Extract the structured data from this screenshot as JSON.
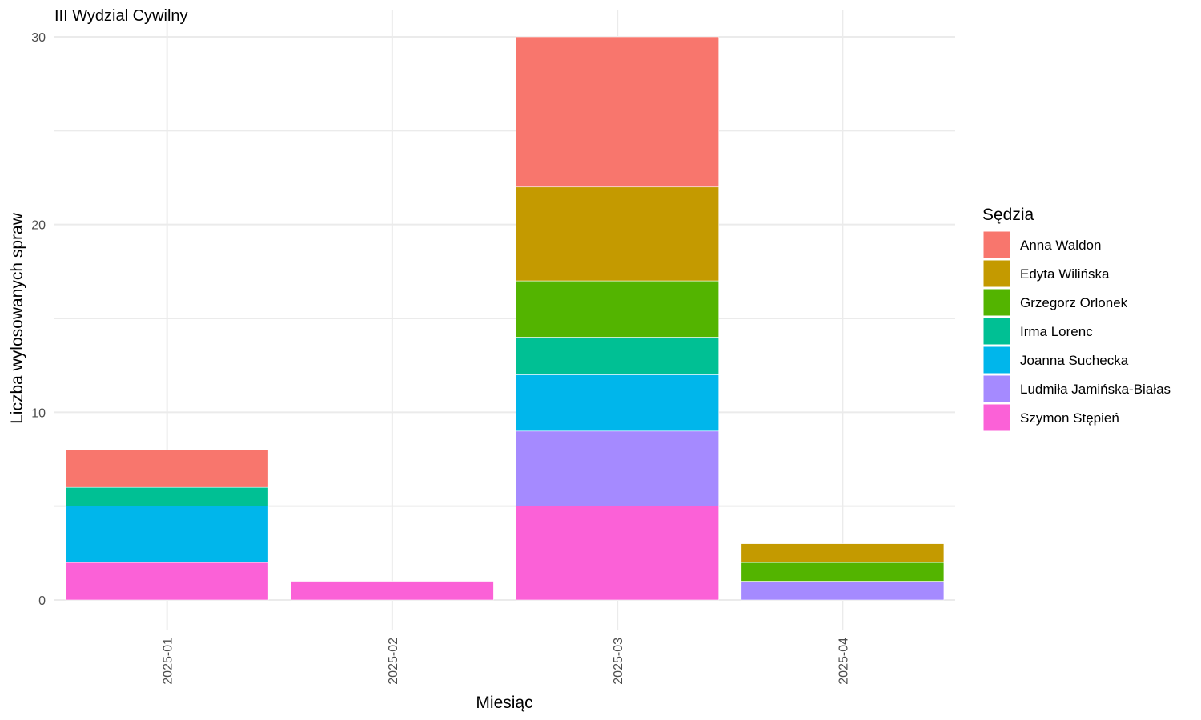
{
  "chart_data": {
    "type": "bar",
    "stacked": true,
    "title": "III Wydzial Cywilny",
    "xlabel": "Miesiąc",
    "ylabel": "Liczba wylosowanych spraw",
    "ylim": [
      0,
      30
    ],
    "y_ticks": [
      0,
      10,
      20,
      30
    ],
    "grid": true,
    "legend_position": "right",
    "categories": [
      "2025-01",
      "2025-02",
      "2025-03",
      "2025-04"
    ],
    "legend_title": "Sędzia",
    "series": [
      {
        "name": "Anna Waldon",
        "color": "#F8766D",
        "values": [
          2,
          0,
          8,
          0
        ]
      },
      {
        "name": "Edyta Wilińska",
        "color": "#C49A00",
        "values": [
          0,
          0,
          5,
          1
        ]
      },
      {
        "name": "Grzegorz Orlonek",
        "color": "#53B400",
        "values": [
          0,
          0,
          3,
          1
        ]
      },
      {
        "name": "Irma Lorenc",
        "color": "#00C094",
        "values": [
          1,
          0,
          2,
          0
        ]
      },
      {
        "name": "Joanna Suchecka",
        "color": "#00B6EB",
        "values": [
          3,
          0,
          3,
          0
        ]
      },
      {
        "name": "Ludmiła Jamińska-Białas",
        "color": "#A58AFF",
        "values": [
          0,
          0,
          4,
          1
        ]
      },
      {
        "name": "Szymon Stępień",
        "color": "#FB61D7",
        "values": [
          2,
          1,
          5,
          0
        ]
      }
    ]
  }
}
